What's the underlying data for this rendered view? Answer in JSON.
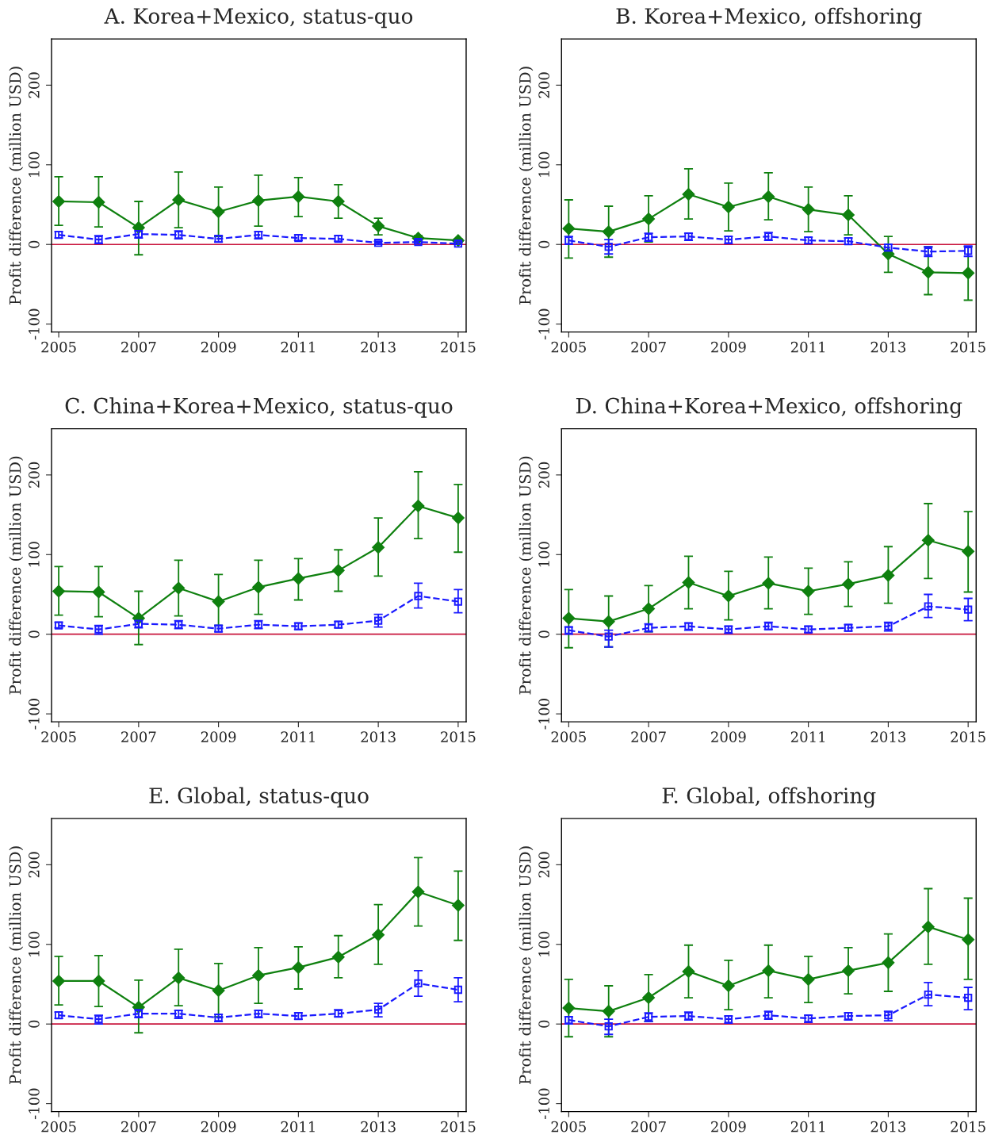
{
  "chart_data": [
    {
      "type": "line",
      "title": "A. Korea+Mexico, status-quo",
      "ylabel": "Profit difference (million USD)",
      "x": [
        2005,
        2006,
        2007,
        2008,
        2009,
        2010,
        2011,
        2012,
        2013,
        2014,
        2015
      ],
      "xlim": [
        2004.82,
        2015.2
      ],
      "xticks": [
        2005,
        2007,
        2009,
        2011,
        2013,
        2015
      ],
      "ylim": [
        -110,
        258
      ],
      "yticks": [
        -100,
        0,
        100,
        200
      ],
      "ref_lines": [
        {
          "axis": "y",
          "value": 0,
          "color": "#c8143c"
        }
      ],
      "grid": false,
      "legend": false,
      "series": [
        {
          "color": "#0f800f",
          "marker": "diamond",
          "line_style": "solid",
          "values": [
            54,
            53,
            21,
            56,
            41,
            55,
            60,
            54,
            23,
            8,
            5
          ],
          "errors": [
            [
              24,
              85
            ],
            [
              22,
              85
            ],
            [
              -13,
              54
            ],
            [
              21,
              91
            ],
            [
              10,
              72
            ],
            [
              23,
              87
            ],
            [
              35,
              84
            ],
            [
              33,
              75
            ],
            [
              12,
              33
            ],
            [
              4,
              11
            ],
            [
              2,
              7
            ]
          ]
        },
        {
          "color": "#1a1aff",
          "marker": "square",
          "line_style": "dashed",
          "values": [
            12,
            6,
            13,
            12,
            7,
            12,
            8,
            7,
            2,
            3,
            1
          ],
          "errors": [
            [
              8,
              16
            ],
            [
              1,
              11
            ],
            [
              8,
              17
            ],
            [
              7,
              17
            ],
            [
              3,
              11
            ],
            [
              7,
              16
            ],
            [
              5,
              12
            ],
            [
              4,
              11
            ],
            [
              0,
              4
            ],
            [
              1,
              5
            ],
            [
              0,
              3
            ]
          ]
        }
      ]
    },
    {
      "type": "line",
      "title": "B. Korea+Mexico, offshoring",
      "ylabel": "Profit difference (million USD)",
      "x": [
        2005,
        2006,
        2007,
        2008,
        2009,
        2010,
        2011,
        2012,
        2013,
        2014,
        2015
      ],
      "xlim": [
        2004.82,
        2015.2
      ],
      "xticks": [
        2005,
        2007,
        2009,
        2011,
        2013,
        2015
      ],
      "ylim": [
        -110,
        258
      ],
      "yticks": [
        -100,
        0,
        100,
        200
      ],
      "ref_lines": [
        {
          "axis": "y",
          "value": 0,
          "color": "#c8143c"
        }
      ],
      "grid": false,
      "legend": false,
      "series": [
        {
          "color": "#0f800f",
          "marker": "diamond",
          "line_style": "solid",
          "values": [
            20,
            16,
            32,
            63,
            47,
            60,
            44,
            37,
            -12,
            -35,
            -36
          ],
          "errors": [
            [
              -17,
              56
            ],
            [
              -16,
              48
            ],
            [
              3,
              61
            ],
            [
              32,
              95
            ],
            [
              17,
              77
            ],
            [
              31,
              90
            ],
            [
              16,
              72
            ],
            [
              12,
              61
            ],
            [
              -35,
              10
            ],
            [
              -63,
              -3
            ],
            [
              -70,
              -3
            ]
          ]
        },
        {
          "color": "#1a1aff",
          "marker": "square",
          "line_style": "dashed",
          "values": [
            5,
            -3,
            9,
            10,
            6,
            10,
            5,
            4,
            -4,
            -9,
            -8
          ],
          "errors": [
            [
              0,
              10
            ],
            [
              -12,
              6
            ],
            [
              4,
              14
            ],
            [
              5,
              14
            ],
            [
              1,
              10
            ],
            [
              5,
              15
            ],
            [
              1,
              9
            ],
            [
              0,
              8
            ],
            [
              -8,
              0
            ],
            [
              -15,
              -3
            ],
            [
              -15,
              -2
            ]
          ]
        }
      ]
    },
    {
      "type": "line",
      "title": "C. China+Korea+Mexico, status-quo",
      "ylabel": "Profit difference (million USD)",
      "x": [
        2005,
        2006,
        2007,
        2008,
        2009,
        2010,
        2011,
        2012,
        2013,
        2014,
        2015
      ],
      "xlim": [
        2004.82,
        2015.2
      ],
      "xticks": [
        2005,
        2007,
        2009,
        2011,
        2013,
        2015
      ],
      "ylim": [
        -110,
        258
      ],
      "yticks": [
        -100,
        0,
        100,
        200
      ],
      "ref_lines": [
        {
          "axis": "y",
          "value": 0,
          "color": "#c8143c"
        }
      ],
      "grid": false,
      "legend": false,
      "series": [
        {
          "color": "#0f800f",
          "marker": "diamond",
          "line_style": "solid",
          "values": [
            54,
            53,
            20,
            58,
            41,
            59,
            70,
            80,
            109,
            161,
            146
          ],
          "errors": [
            [
              24,
              85
            ],
            [
              22,
              85
            ],
            [
              -13,
              54
            ],
            [
              23,
              93
            ],
            [
              11,
              75
            ],
            [
              25,
              93
            ],
            [
              43,
              95
            ],
            [
              54,
              106
            ],
            [
              73,
              146
            ],
            [
              120,
              204
            ],
            [
              103,
              188
            ]
          ]
        },
        {
          "color": "#1a1aff",
          "marker": "square",
          "line_style": "dashed",
          "values": [
            11,
            6,
            13,
            12,
            7,
            12,
            10,
            12,
            17,
            48,
            41
          ],
          "errors": [
            [
              8,
              15
            ],
            [
              0,
              11
            ],
            [
              8,
              17
            ],
            [
              7,
              17
            ],
            [
              3,
              11
            ],
            [
              7,
              17
            ],
            [
              6,
              14
            ],
            [
              8,
              16
            ],
            [
              9,
              25
            ],
            [
              33,
              64
            ],
            [
              27,
              56
            ]
          ]
        }
      ]
    },
    {
      "type": "line",
      "title": "D. China+Korea+Mexico, offshoring",
      "ylabel": "Profit difference (million USD)",
      "x": [
        2005,
        2006,
        2007,
        2008,
        2009,
        2010,
        2011,
        2012,
        2013,
        2014,
        2015
      ],
      "xlim": [
        2004.82,
        2015.2
      ],
      "xticks": [
        2005,
        2007,
        2009,
        2011,
        2013,
        2015
      ],
      "ylim": [
        -110,
        258
      ],
      "yticks": [
        -100,
        0,
        100,
        200
      ],
      "ref_lines": [
        {
          "axis": "y",
          "value": 0,
          "color": "#c8143c"
        }
      ],
      "grid": false,
      "legend": false,
      "series": [
        {
          "color": "#0f800f",
          "marker": "diamond",
          "line_style": "solid",
          "values": [
            20,
            16,
            32,
            65,
            48,
            64,
            54,
            63,
            74,
            118,
            104
          ],
          "errors": [
            [
              -17,
              56
            ],
            [
              -16,
              48
            ],
            [
              3,
              61
            ],
            [
              32,
              98
            ],
            [
              18,
              79
            ],
            [
              32,
              97
            ],
            [
              25,
              83
            ],
            [
              35,
              91
            ],
            [
              39,
              110
            ],
            [
              70,
              164
            ],
            [
              53,
              154
            ]
          ]
        },
        {
          "color": "#1a1aff",
          "marker": "square",
          "line_style": "dashed",
          "values": [
            5,
            -3,
            8,
            10,
            6,
            10,
            6,
            8,
            10,
            35,
            31
          ],
          "errors": [
            [
              0,
              9
            ],
            [
              -16,
              5
            ],
            [
              3,
              13
            ],
            [
              5,
              14
            ],
            [
              1,
              10
            ],
            [
              6,
              15
            ],
            [
              2,
              10
            ],
            [
              4,
              12
            ],
            [
              4,
              15
            ],
            [
              21,
              50
            ],
            [
              17,
              45
            ]
          ]
        }
      ]
    },
    {
      "type": "line",
      "title": "E. Global, status-quo",
      "ylabel": "Profit difference (million USD)",
      "x": [
        2005,
        2006,
        2007,
        2008,
        2009,
        2010,
        2011,
        2012,
        2013,
        2014,
        2015
      ],
      "xlim": [
        2004.82,
        2015.2
      ],
      "xticks": [
        2005,
        2007,
        2009,
        2011,
        2013,
        2015
      ],
      "ylim": [
        -110,
        258
      ],
      "yticks": [
        -100,
        0,
        100,
        200
      ],
      "ref_lines": [
        {
          "axis": "y",
          "value": 0,
          "color": "#c8143c"
        }
      ],
      "grid": false,
      "legend": false,
      "series": [
        {
          "color": "#0f800f",
          "marker": "diamond",
          "line_style": "solid",
          "values": [
            54,
            54,
            21,
            58,
            42,
            61,
            71,
            84,
            112,
            166,
            149
          ],
          "errors": [
            [
              24,
              85
            ],
            [
              22,
              86
            ],
            [
              -11,
              55
            ],
            [
              23,
              94
            ],
            [
              9,
              76
            ],
            [
              26,
              96
            ],
            [
              44,
              97
            ],
            [
              58,
              111
            ],
            [
              75,
              150
            ],
            [
              123,
              209
            ],
            [
              105,
              192
            ]
          ]
        },
        {
          "color": "#1a1aff",
          "marker": "square",
          "line_style": "dashed",
          "values": [
            11,
            6,
            13,
            13,
            8,
            13,
            10,
            13,
            18,
            51,
            43
          ],
          "errors": [
            [
              7,
              15
            ],
            [
              0,
              11
            ],
            [
              8,
              18
            ],
            [
              7,
              17
            ],
            [
              3,
              12
            ],
            [
              8,
              17
            ],
            [
              6,
              14
            ],
            [
              9,
              18
            ],
            [
              9,
              26
            ],
            [
              35,
              67
            ],
            [
              28,
              58
            ]
          ]
        }
      ]
    },
    {
      "type": "line",
      "title": "F. Global, offshoring",
      "ylabel": "Profit difference (million USD)",
      "x": [
        2005,
        2006,
        2007,
        2008,
        2009,
        2010,
        2011,
        2012,
        2013,
        2014,
        2015
      ],
      "xlim": [
        2004.82,
        2015.2
      ],
      "xticks": [
        2005,
        2007,
        2009,
        2011,
        2013,
        2015
      ],
      "ylim": [
        -110,
        258
      ],
      "yticks": [
        -100,
        0,
        100,
        200
      ],
      "ref_lines": [
        {
          "axis": "y",
          "value": 0,
          "color": "#c8143c"
        }
      ],
      "grid": false,
      "legend": false,
      "series": [
        {
          "color": "#0f800f",
          "marker": "diamond",
          "line_style": "solid",
          "values": [
            20,
            16,
            33,
            66,
            48,
            67,
            56,
            67,
            77,
            122,
            106
          ],
          "errors": [
            [
              -16,
              56
            ],
            [
              -16,
              48
            ],
            [
              3,
              62
            ],
            [
              33,
              99
            ],
            [
              18,
              80
            ],
            [
              33,
              99
            ],
            [
              27,
              85
            ],
            [
              38,
              96
            ],
            [
              41,
              113
            ],
            [
              75,
              170
            ],
            [
              56,
              158
            ]
          ]
        },
        {
          "color": "#1a1aff",
          "marker": "square",
          "line_style": "dashed",
          "values": [
            5,
            -3,
            9,
            10,
            6,
            11,
            7,
            10,
            11,
            37,
            33
          ],
          "errors": [
            [
              0,
              9
            ],
            [
              -13,
              6
            ],
            [
              3,
              14
            ],
            [
              5,
              15
            ],
            [
              1,
              10
            ],
            [
              6,
              16
            ],
            [
              2,
              11
            ],
            [
              5,
              14
            ],
            [
              4,
              16
            ],
            [
              23,
              52
            ],
            [
              18,
              46
            ]
          ]
        }
      ]
    }
  ]
}
